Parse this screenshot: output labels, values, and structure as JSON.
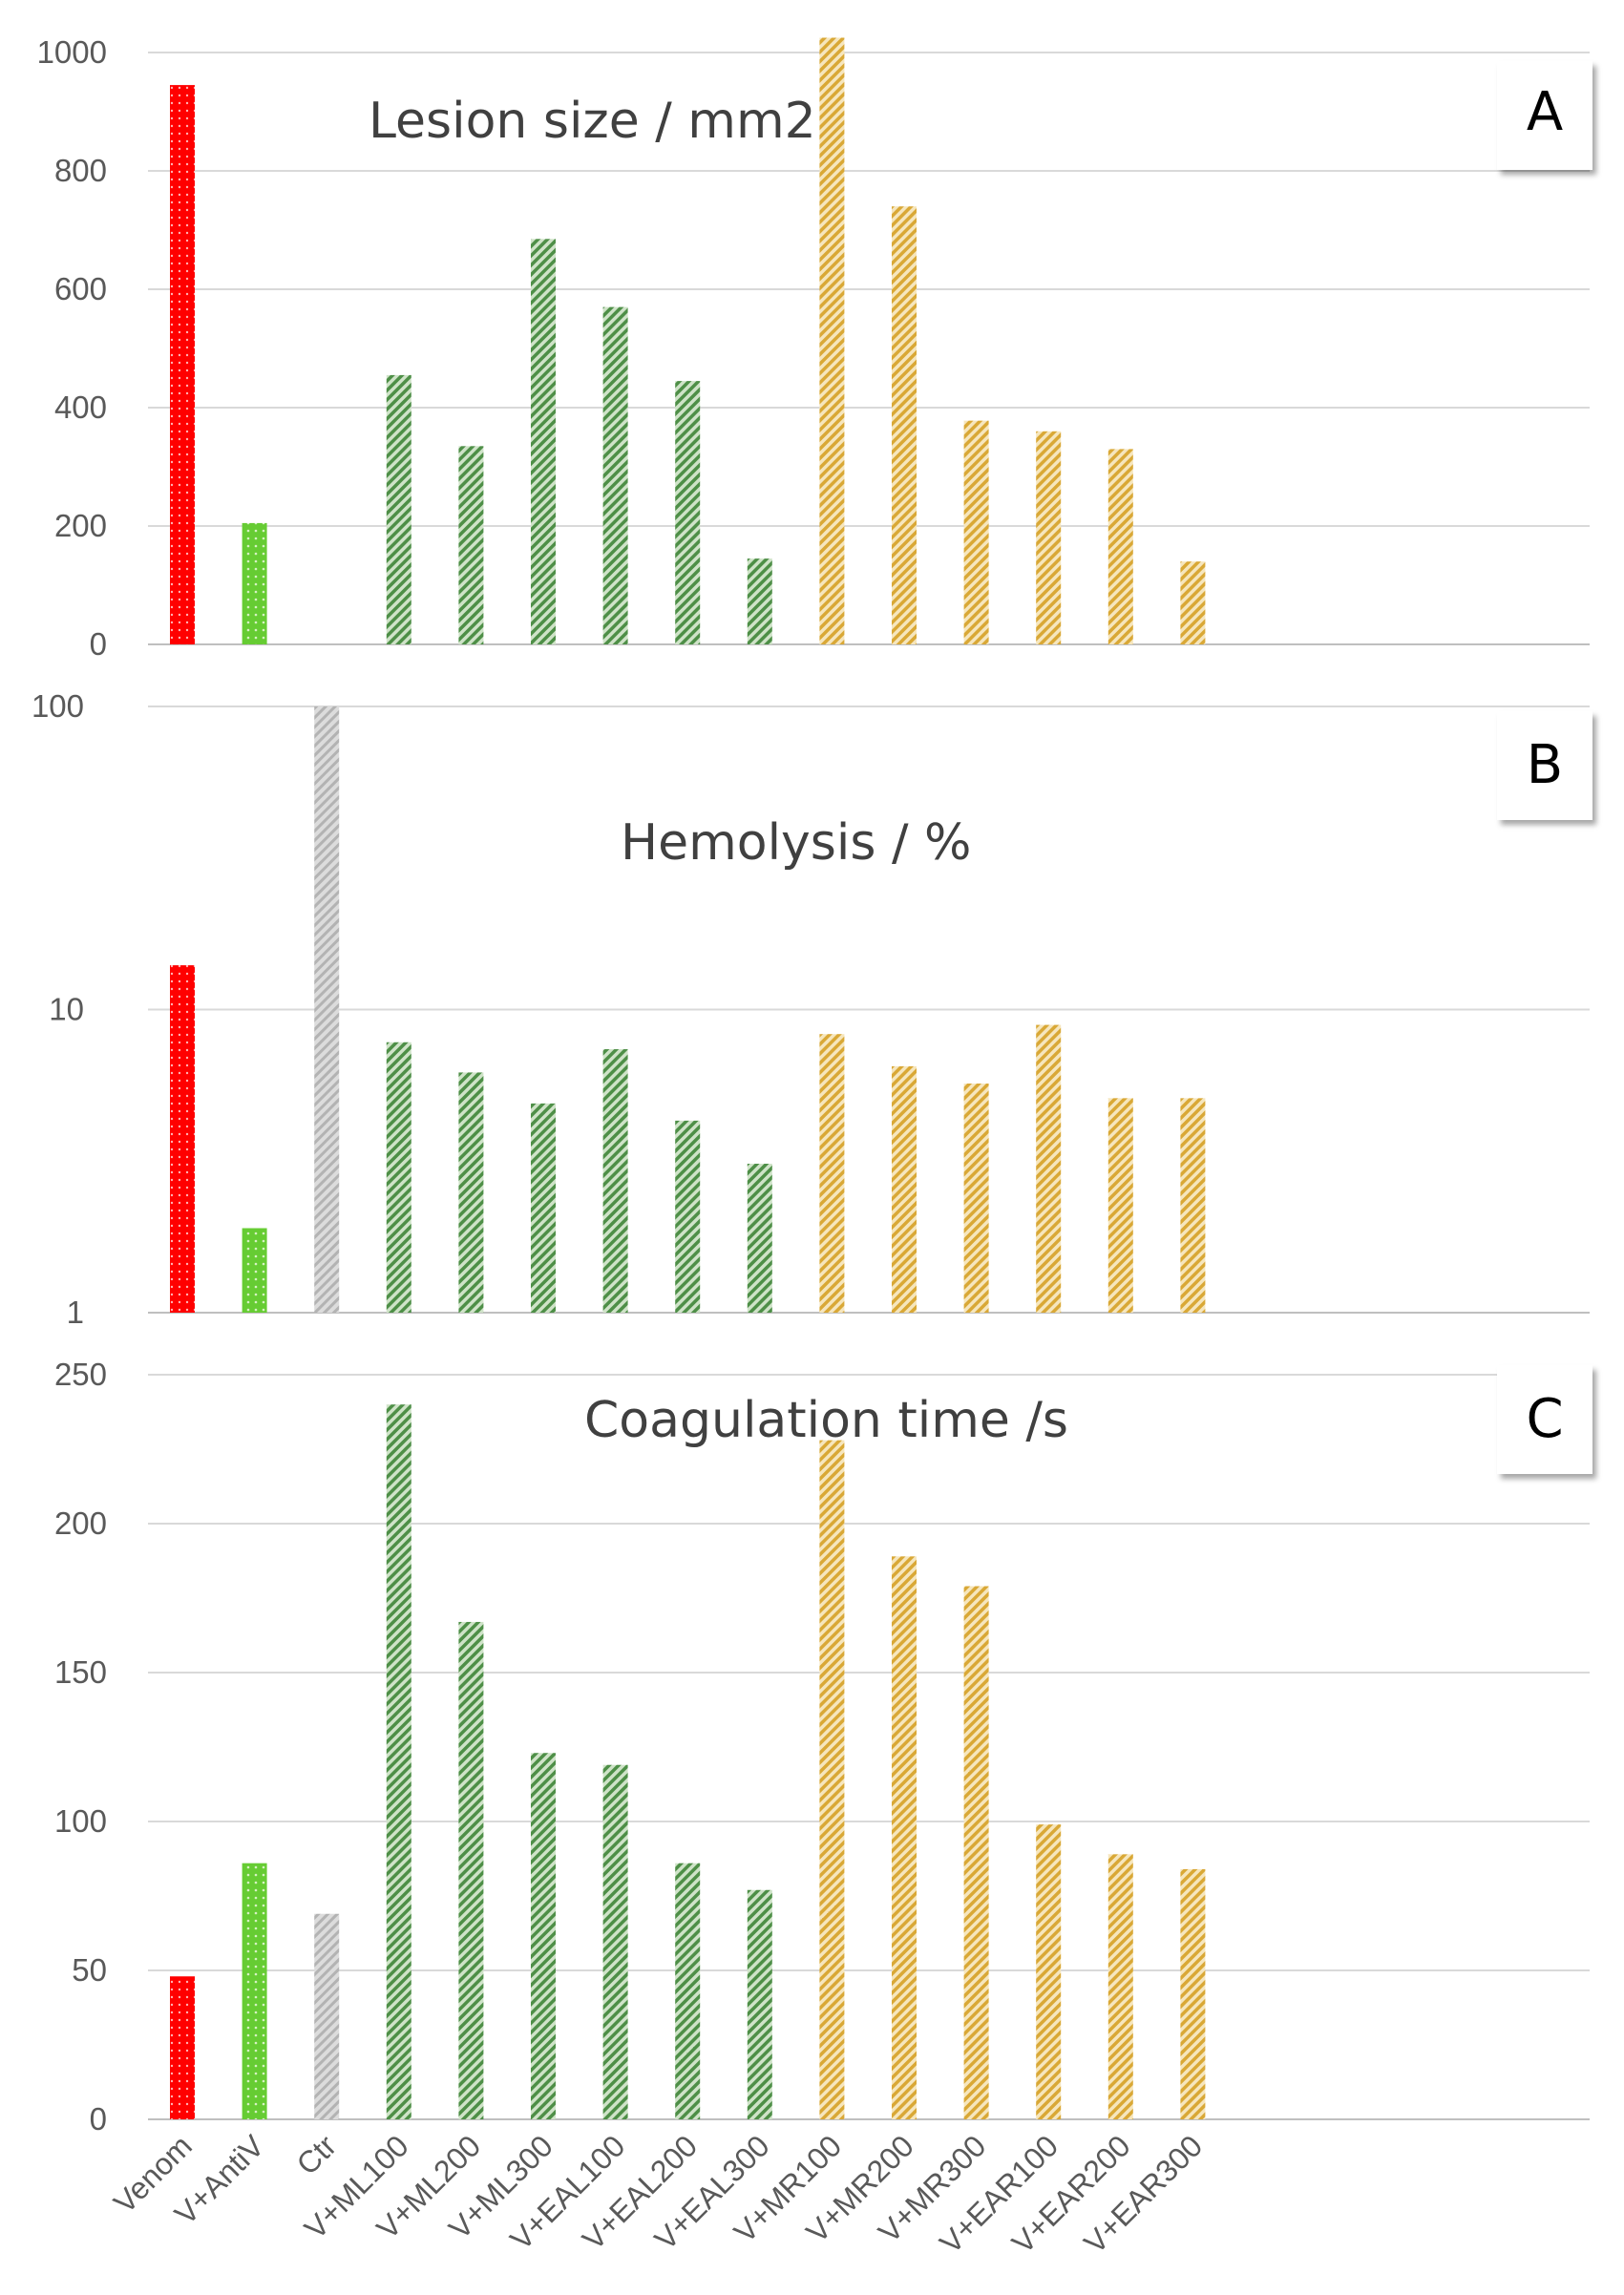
{
  "chart_data": [
    {
      "type": "bar",
      "panel_label": "A",
      "title": "Lesion size / mm2",
      "yscale": "linear",
      "ylim": [
        0,
        1000
      ],
      "yticks": [
        "0",
        "200",
        "400",
        "600",
        "800",
        "1000"
      ],
      "categories": [
        "Venom",
        "V+AntiV",
        "Ctr",
        "V+ML100",
        "V+ML200",
        "V+ML300",
        "V+EAL100",
        "V+EAL200",
        "V+EAL300",
        "V+MR100",
        "V+MR200",
        "V+MR300",
        "V+EAR100",
        "V+EAR200",
        "V+EAR300"
      ],
      "values": [
        945,
        205,
        0,
        455,
        335,
        685,
        570,
        445,
        145,
        1025,
        740,
        378,
        360,
        330,
        140
      ]
    },
    {
      "type": "bar",
      "panel_label": "B",
      "title": "Hemolysis / %",
      "yscale": "log",
      "ylim": [
        1,
        100
      ],
      "yticks": [
        "1",
        "10",
        "100"
      ],
      "categories": [
        "Venom",
        "V+AntiV",
        "Ctr",
        "V+ML100",
        "V+ML200",
        "V+ML300",
        "V+EAL100",
        "V+EAL200",
        "V+EAL300",
        "V+MR100",
        "V+MR200",
        "V+MR300",
        "V+EAR100",
        "V+EAR200",
        "V+EAR300"
      ],
      "values": [
        14,
        1.9,
        100,
        7.8,
        6.2,
        4.9,
        7.4,
        4.3,
        3.1,
        8.3,
        6.5,
        5.7,
        8.9,
        5.1,
        5.1
      ]
    },
    {
      "type": "bar",
      "panel_label": "C",
      "title": "Coagulation time /s",
      "yscale": "linear",
      "ylim": [
        0,
        250
      ],
      "yticks": [
        "0",
        "50",
        "100",
        "150",
        "200",
        "250"
      ],
      "categories": [
        "Venom",
        "V+AntiV",
        "Ctr",
        "V+ML100",
        "V+ML200",
        "V+ML300",
        "V+EAL100",
        "V+EAL200",
        "V+EAL300",
        "V+MR100",
        "V+MR200",
        "V+MR300",
        "V+EAR100",
        "V+EAR200",
        "V+EAR300"
      ],
      "values": [
        48,
        86,
        69,
        240,
        167,
        123,
        119,
        86,
        77,
        228,
        189,
        179,
        99,
        89,
        84
      ]
    }
  ],
  "x_labels": [
    "Venom",
    "V+AntiV",
    "Ctr",
    "V+ML100",
    "V+ML200",
    "V+ML300",
    "V+EAL100",
    "V+EAL200",
    "V+EAL300",
    "V+MR100",
    "V+MR200",
    "V+MR300",
    "V+EAR100",
    "V+EAR200",
    "V+EAR300"
  ],
  "colors": {
    "venom": "#ff0000",
    "antivenom": "#66cc33",
    "control": "#bfbfbf",
    "leaf": "#5a9a52",
    "root": "#e0b040",
    "grid": "#d9d9d9"
  }
}
